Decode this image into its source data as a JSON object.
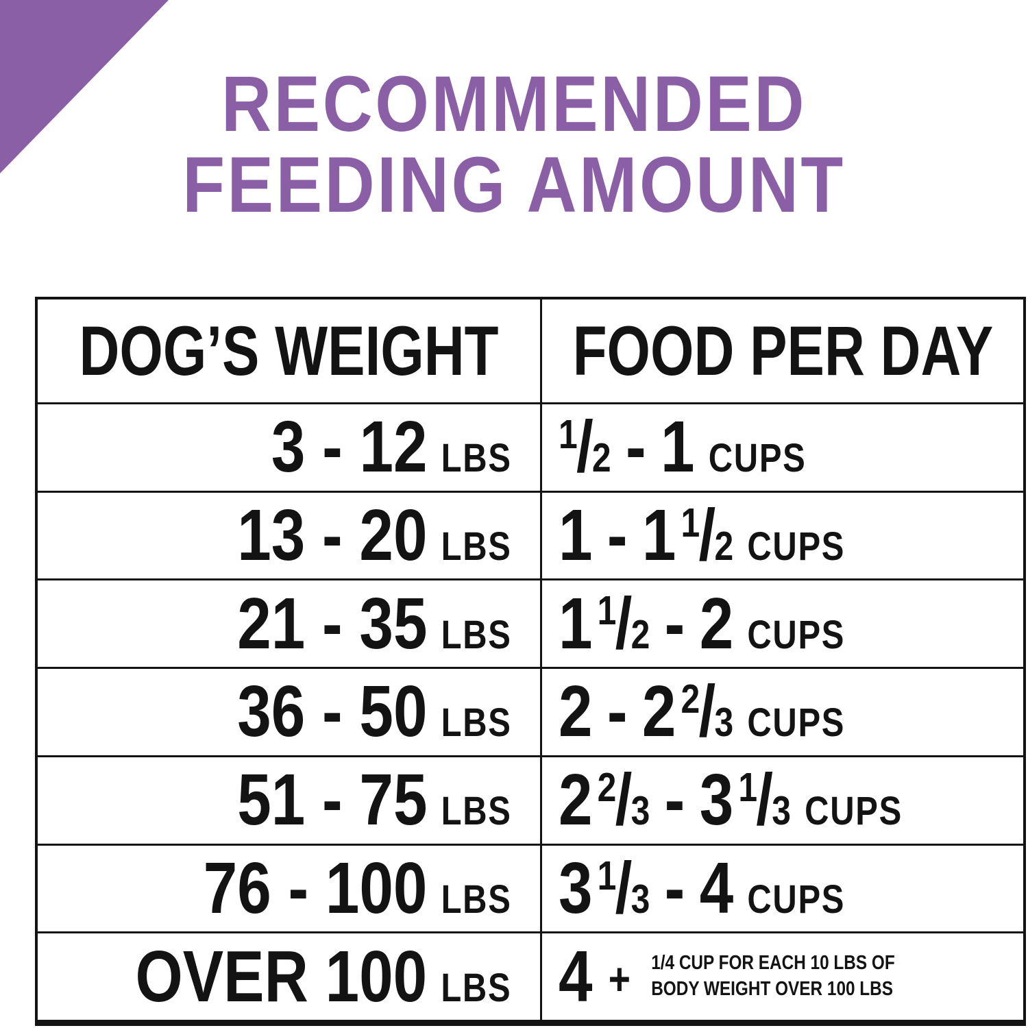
{
  "colors": {
    "accent": "#8A5FA6",
    "ink": "#131313",
    "background": "#FFFFFF"
  },
  "title": {
    "line1": "RECOMMENDED",
    "line2": "FEEDING AMOUNT"
  },
  "table": {
    "columns": [
      "DOG’S WEIGHT",
      "FOOD PER DAY"
    ],
    "rows": [
      {
        "weight": "3 - 12",
        "weight_unit": "LBS",
        "food": [
          {
            "frac": [
              "1",
              "2"
            ]
          },
          {
            "dash": "-"
          },
          {
            "text": "1"
          }
        ],
        "food_unit": "CUPS"
      },
      {
        "weight": "13 - 20",
        "weight_unit": "LBS",
        "food": [
          {
            "text": "1"
          },
          {
            "dash": "-"
          },
          {
            "text": "1"
          },
          {
            "frac": [
              "1",
              "2"
            ]
          }
        ],
        "food_unit": "CUPS"
      },
      {
        "weight": "21 - 35",
        "weight_unit": "LBS",
        "food": [
          {
            "text": "1"
          },
          {
            "frac": [
              "1",
              "2"
            ]
          },
          {
            "dash": "-"
          },
          {
            "text": "2"
          }
        ],
        "food_unit": "CUPS"
      },
      {
        "weight": "36 - 50",
        "weight_unit": "LBS",
        "food": [
          {
            "text": "2"
          },
          {
            "dash": "-"
          },
          {
            "text": "2"
          },
          {
            "frac": [
              "2",
              "3"
            ]
          }
        ],
        "food_unit": "CUPS"
      },
      {
        "weight": "51 - 75",
        "weight_unit": "LBS",
        "food": [
          {
            "text": "2"
          },
          {
            "frac": [
              "2",
              "3"
            ]
          },
          {
            "dash": "-"
          },
          {
            "text": "3"
          },
          {
            "frac": [
              "1",
              "3"
            ]
          }
        ],
        "food_unit": "CUPS"
      },
      {
        "weight": "76 - 100",
        "weight_unit": "LBS",
        "food": [
          {
            "text": "3"
          },
          {
            "frac": [
              "1",
              "3"
            ]
          },
          {
            "dash": "-"
          },
          {
            "text": "4"
          }
        ],
        "food_unit": "CUPS"
      },
      {
        "weight": "OVER 100",
        "weight_unit": "LBS",
        "food": [
          {
            "text": "4"
          },
          {
            "plus": "+"
          }
        ],
        "food_note": [
          "1/4 CUP FOR EACH 10 LBS OF",
          "BODY WEIGHT OVER 100 LBS"
        ]
      }
    ]
  }
}
